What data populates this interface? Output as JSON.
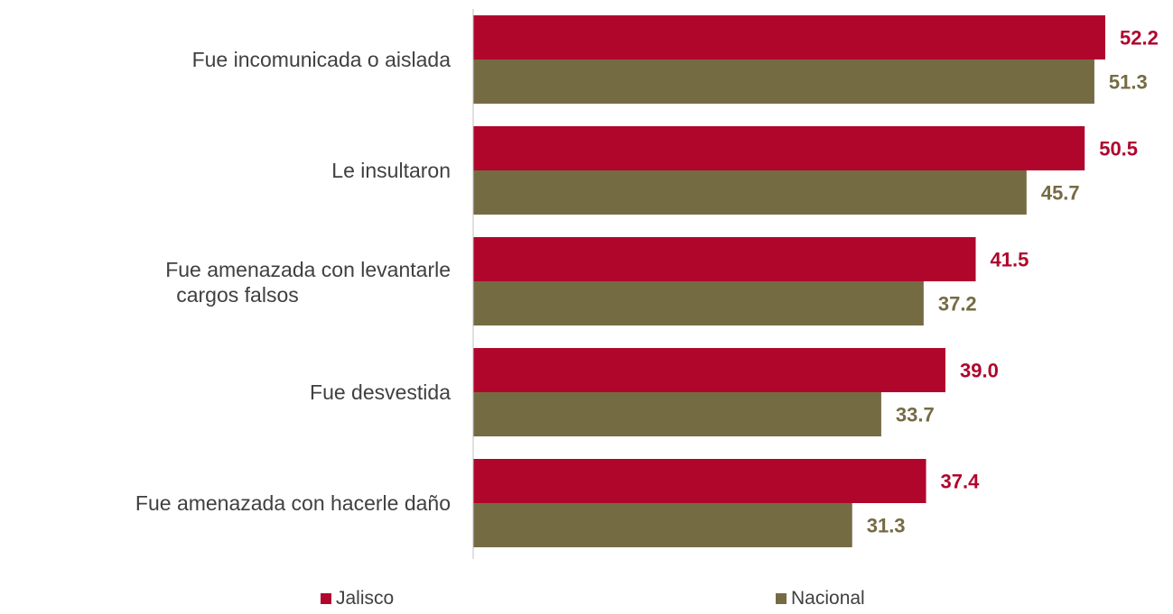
{
  "chart_data": {
    "type": "bar",
    "orientation": "horizontal",
    "categories": [
      "Fue incomunicada o aislada",
      "Le insultaron",
      "Fue amenazada con levantarle cargos falsos",
      "Fue desvestida",
      "Fue amenazada con hacerle daño"
    ],
    "series": [
      {
        "name": "Jalisco",
        "color": "#B0062C",
        "values": [
          52.2,
          50.5,
          41.5,
          39.0,
          37.4
        ]
      },
      {
        "name": "Nacional",
        "color": "#756B43",
        "values": [
          51.3,
          45.7,
          37.2,
          33.7,
          31.3
        ]
      }
    ],
    "title": "",
    "xlabel": "",
    "ylabel": "",
    "xlim": [
      0,
      60
    ],
    "value_format": "0.0",
    "grid": false,
    "legend_position": "bottom"
  }
}
